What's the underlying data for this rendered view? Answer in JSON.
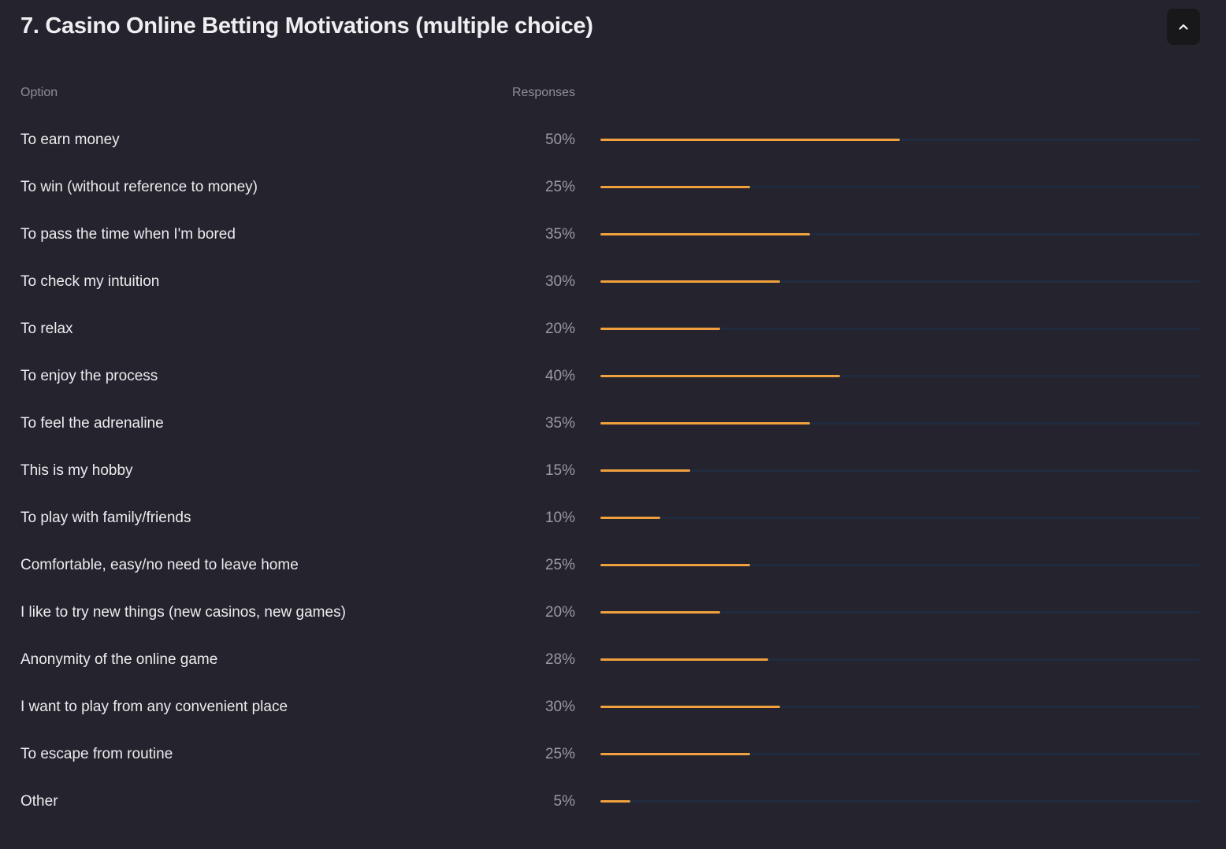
{
  "header": {
    "title": "7. Casino Online Betting Motivations (multiple choice)",
    "collapse_icon": "chevron-up-icon"
  },
  "table": {
    "col_option": "Option",
    "col_responses": "Responses"
  },
  "colors": {
    "background": "#25242e",
    "bar_fill": "#f0a03c",
    "bar_track": "#212b40"
  },
  "chart_data": {
    "type": "bar",
    "orientation": "horizontal",
    "title": "7. Casino Online Betting Motivations (multiple choice)",
    "xlabel": "Responses",
    "ylabel": "Option",
    "xlim": [
      0,
      100
    ],
    "unit": "%",
    "categories": [
      "To earn money",
      "To win (without reference to money)",
      "To pass the time when I'm bored",
      "To check my intuition",
      "To relax",
      "To enjoy the process",
      "To feel the adrenaline",
      "This is my hobby",
      "To play with family/friends",
      "Comfortable, easy/no need to leave home",
      "I like to try new things (new casinos, new games)",
      "Anonymity of the online game",
      "I want to play from any convenient place",
      "To escape from routine",
      "Other"
    ],
    "values": [
      50,
      25,
      35,
      30,
      20,
      40,
      35,
      15,
      10,
      25,
      20,
      28,
      30,
      25,
      5
    ],
    "labels": [
      "50%",
      "25%",
      "35%",
      "30%",
      "20%",
      "40%",
      "35%",
      "15%",
      "10%",
      "25%",
      "20%",
      "28%",
      "30%",
      "25%",
      "5%"
    ]
  }
}
